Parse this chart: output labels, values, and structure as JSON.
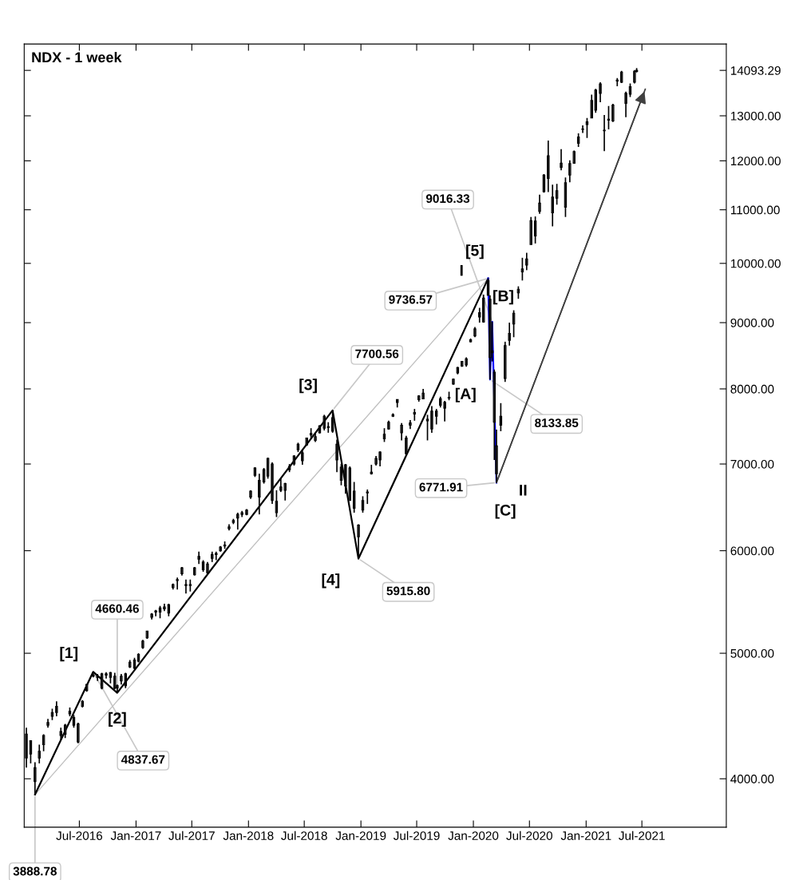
{
  "chart_data": {
    "type": "candlestick",
    "title": "NDX - 1 week",
    "x": [
      "2016-01-11",
      "2016-01-25",
      "2016-02-08",
      "2016-02-22",
      "2016-03-07",
      "2016-03-21",
      "2016-04-04",
      "2016-04-18",
      "2016-05-02",
      "2016-05-16",
      "2016-05-31",
      "2016-06-13",
      "2016-06-27",
      "2016-07-11",
      "2016-07-25",
      "2016-08-15",
      "2016-08-29",
      "2016-09-12",
      "2016-09-26",
      "2016-10-10",
      "2016-10-24",
      "2016-11-01",
      "2016-11-14",
      "2016-11-28",
      "2016-12-12",
      "2016-12-27",
      "2017-01-09",
      "2017-01-23",
      "2017-02-06",
      "2017-02-21",
      "2017-03-06",
      "2017-03-20",
      "2017-04-03",
      "2017-04-17",
      "2017-05-01",
      "2017-05-15",
      "2017-05-30",
      "2017-06-12",
      "2017-06-26",
      "2017-07-10",
      "2017-07-24",
      "2017-08-07",
      "2017-08-21",
      "2017-09-05",
      "2017-09-18",
      "2017-10-02",
      "2017-10-16",
      "2017-10-30",
      "2017-11-13",
      "2017-11-27",
      "2017-12-11",
      "2017-12-26",
      "2018-01-08",
      "2018-01-22",
      "2018-02-05",
      "2018-02-20",
      "2018-03-05",
      "2018-03-19",
      "2018-04-02",
      "2018-04-16",
      "2018-04-30",
      "2018-05-14",
      "2018-05-29",
      "2018-06-11",
      "2018-06-25",
      "2018-07-09",
      "2018-07-23",
      "2018-08-06",
      "2018-08-20",
      "2018-09-04",
      "2018-09-17",
      "2018-10-01",
      "2018-10-15",
      "2018-10-29",
      "2018-11-12",
      "2018-11-26",
      "2018-12-10",
      "2018-12-24",
      "2019-01-07",
      "2019-01-22",
      "2019-02-04",
      "2019-02-19",
      "2019-03-04",
      "2019-03-18",
      "2019-04-01",
      "2019-04-15",
      "2019-04-29",
      "2019-05-13",
      "2019-05-28",
      "2019-06-10",
      "2019-06-24",
      "2019-07-08",
      "2019-07-22",
      "2019-08-05",
      "2019-08-19",
      "2019-09-03",
      "2019-09-16",
      "2019-09-30",
      "2019-10-14",
      "2019-10-28",
      "2019-11-11",
      "2019-11-25",
      "2019-12-09",
      "2019-12-23",
      "2020-01-06",
      "2020-01-21",
      "2020-02-03",
      "2020-02-18",
      "2020-02-24",
      "2020-03-02",
      "2020-03-09",
      "2020-03-16",
      "2020-03-30",
      "2020-04-13",
      "2020-04-27",
      "2020-05-11",
      "2020-05-26",
      "2020-06-08",
      "2020-06-22",
      "2020-07-06",
      "2020-07-20",
      "2020-08-03",
      "2020-08-17",
      "2020-08-31",
      "2020-09-14",
      "2020-09-28",
      "2020-10-12",
      "2020-10-26",
      "2020-11-09",
      "2020-11-23",
      "2020-12-07",
      "2020-12-21",
      "2021-01-04",
      "2021-01-19",
      "2021-02-01",
      "2021-02-16",
      "2021-03-01",
      "2021-03-15",
      "2021-03-29",
      "2021-04-12",
      "2021-04-26",
      "2021-05-10",
      "2021-05-24",
      "2021-06-07",
      "2021-06-14"
    ],
    "ohlc": [
      [
        4330,
        4380,
        4080,
        4150
      ],
      [
        4180,
        4280,
        4110,
        4280
      ],
      [
        4080,
        4120,
        3888.78,
        3980
      ],
      [
        4150,
        4250,
        4110,
        4200
      ],
      [
        4250,
        4330,
        4200,
        4320
      ],
      [
        4400,
        4450,
        4380,
        4420
      ],
      [
        4500,
        4530,
        4440,
        4470
      ],
      [
        4550,
        4590,
        4470,
        4500
      ],
      [
        4350,
        4380,
        4290,
        4320
      ],
      [
        4330,
        4410,
        4300,
        4400
      ],
      [
        4510,
        4540,
        4470,
        4490
      ],
      [
        4460,
        4480,
        4380,
        4400
      ],
      [
        4270,
        4420,
        4260,
        4410
      ],
      [
        4550,
        4600,
        4540,
        4590
      ],
      [
        4680,
        4730,
        4670,
        4730
      ],
      [
        4800,
        4837.67,
        4790,
        4810
      ],
      [
        4800,
        4820,
        4760,
        4790
      ],
      [
        4700,
        4830,
        4690,
        4820
      ],
      [
        4820,
        4835,
        4780,
        4810
      ],
      [
        4830,
        4836,
        4740,
        4790
      ],
      [
        4800,
        4830,
        4690,
        4700
      ],
      [
        4720,
        4730,
        4660.46,
        4700
      ],
      [
        4760,
        4820,
        4730,
        4800
      ],
      [
        4820,
        4830,
        4700,
        4720
      ],
      [
        4880,
        4940,
        4870,
        4920
      ],
      [
        4940,
        4960,
        4860,
        4870
      ],
      [
        4930,
        5000,
        4920,
        4990
      ],
      [
        5050,
        5120,
        5040,
        5110
      ],
      [
        5140,
        5200,
        5130,
        5200
      ],
      [
        5330,
        5370,
        5310,
        5360
      ],
      [
        5380,
        5400,
        5340,
        5390
      ],
      [
        5420,
        5440,
        5320,
        5380
      ],
      [
        5430,
        5460,
        5390,
        5410
      ],
      [
        5370,
        5460,
        5340,
        5450
      ],
      [
        5620,
        5660,
        5600,
        5650
      ],
      [
        5690,
        5720,
        5600,
        5700
      ],
      [
        5760,
        5830,
        5740,
        5820
      ],
      [
        5650,
        5700,
        5560,
        5640
      ],
      [
        5650,
        5700,
        5580,
        5640
      ],
      [
        5750,
        5830,
        5740,
        5820
      ],
      [
        5940,
        5990,
        5860,
        5910
      ],
      [
        5880,
        5900,
        5780,
        5800
      ],
      [
        5770,
        5880,
        5750,
        5860
      ],
      [
        5960,
        5990,
        5880,
        5920
      ],
      [
        5970,
        5990,
        5900,
        5960
      ],
      [
        6000,
        6050,
        5990,
        6040
      ],
      [
        6050,
        6100,
        6020,
        6060
      ],
      [
        6240,
        6290,
        6220,
        6260
      ],
      [
        6310,
        6350,
        6290,
        6330
      ],
      [
        6400,
        6420,
        6230,
        6360
      ],
      [
        6400,
        6440,
        6370,
        6420
      ],
      [
        6450,
        6460,
        6390,
        6400
      ],
      [
        6600,
        6680,
        6580,
        6670
      ],
      [
        6860,
        6960,
        6840,
        6950
      ],
      [
        6800,
        6880,
        6400,
        6600
      ],
      [
        6780,
        6950,
        6760,
        6930
      ],
      [
        6850,
        7080,
        6820,
        7070
      ],
      [
        7000,
        7020,
        6520,
        6560
      ],
      [
        6420,
        6680,
        6370,
        6550
      ],
      [
        6720,
        6830,
        6660,
        6680
      ],
      [
        6680,
        6770,
        6560,
        6760
      ],
      [
        6970,
        7000,
        6900,
        6930
      ],
      [
        7000,
        7110,
        6980,
        7100
      ],
      [
        7180,
        7270,
        7150,
        7250
      ],
      [
        7140,
        7180,
        6990,
        7040
      ],
      [
        7240,
        7330,
        7230,
        7330
      ],
      [
        7390,
        7460,
        7330,
        7370
      ],
      [
        7300,
        7390,
        7280,
        7350
      ],
      [
        7400,
        7500,
        7390,
        7490
      ],
      [
        7620,
        7640,
        7430,
        7460
      ],
      [
        7480,
        7540,
        7400,
        7470
      ],
      [
        7600,
        7700.56,
        7400,
        7420
      ],
      [
        7250,
        7310,
        6900,
        7050
      ],
      [
        6800,
        7000,
        6740,
        6960
      ],
      [
        6990,
        7000,
        6640,
        6730
      ],
      [
        6560,
        6970,
        6560,
        6950
      ],
      [
        6670,
        6780,
        6420,
        6470
      ],
      [
        6150,
        6290,
        5915.8,
        6280
      ],
      [
        6450,
        6610,
        6420,
        6560
      ],
      [
        6660,
        6690,
        6520,
        6650
      ],
      [
        6900,
        6990,
        6870,
        6880
      ],
      [
        7000,
        7100,
        6980,
        7070
      ],
      [
        7150,
        7160,
        6970,
        7050
      ],
      [
        7380,
        7460,
        7280,
        7320
      ],
      [
        7450,
        7560,
        7440,
        7540
      ],
      [
        7620,
        7660,
        7610,
        7640
      ],
      [
        7850,
        7850,
        7740,
        7810
      ],
      [
        7400,
        7530,
        7300,
        7500
      ],
      [
        7330,
        7360,
        7100,
        7130
      ],
      [
        7500,
        7570,
        7450,
        7530
      ],
      [
        7650,
        7720,
        7560,
        7670
      ],
      [
        7850,
        7910,
        7820,
        7900
      ],
      [
        7860,
        8000,
        7860,
        7940
      ],
      [
        7560,
        7640,
        7300,
        7580
      ],
      [
        7690,
        7760,
        7400,
        7450
      ],
      [
        7620,
        7720,
        7510,
        7690
      ],
      [
        7860,
        7890,
        7740,
        7770
      ],
      [
        7810,
        7830,
        7550,
        7730
      ],
      [
        7880,
        7960,
        7840,
        7870
      ],
      [
        8070,
        8150,
        8060,
        8140
      ],
      [
        8230,
        8320,
        8210,
        8310
      ],
      [
        8330,
        8400,
        8320,
        8400
      ],
      [
        8350,
        8460,
        8320,
        8440
      ],
      [
        8700,
        8750,
        8690,
        8730
      ],
      [
        8790,
        8930,
        8770,
        8900
      ],
      [
        9160,
        9240,
        9000,
        9090
      ],
      [
        9010,
        9460,
        9000,
        9400
      ],
      [
        9700,
        9736.57,
        9440,
        9450
      ],
      [
        9380,
        9450,
        8133.85,
        8460
      ],
      [
        8560,
        9016.33,
        8400,
        8530
      ],
      [
        8240,
        8280,
        7050,
        7540
      ],
      [
        7230,
        7440,
        6771.91,
        6880
      ],
      [
        7620,
        7800,
        7420,
        7500
      ],
      [
        8150,
        8700,
        8100,
        8640
      ],
      [
        8830,
        9000,
        8640,
        8720
      ],
      [
        8980,
        9200,
        8770,
        9150
      ],
      [
        9490,
        9600,
        9390,
        9550
      ],
      [
        9900,
        10100,
        9700,
        9850
      ],
      [
        10080,
        10190,
        9880,
        9970
      ],
      [
        10340,
        10860,
        10340,
        10790
      ],
      [
        10780,
        10870,
        10360,
        10500
      ],
      [
        10970,
        11300,
        10920,
        11130
      ],
      [
        11360,
        11720,
        11340,
        11700
      ],
      [
        12110,
        12439,
        11350,
        11630
      ],
      [
        11250,
        11500,
        10680,
        10940
      ],
      [
        11230,
        11520,
        11100,
        11380
      ],
      [
        11950,
        12250,
        11800,
        11860
      ],
      [
        11540,
        11650,
        10860,
        11050
      ],
      [
        11700,
        12010,
        11550,
        11940
      ],
      [
        11950,
        12220,
        11940,
        12200
      ],
      [
        12520,
        12600,
        12300,
        12380
      ],
      [
        12690,
        12780,
        12610,
        12700
      ],
      [
        12800,
        12950,
        12500,
        12860
      ],
      [
        12950,
        13500,
        12950,
        13360
      ],
      [
        13130,
        13640,
        13070,
        13610
      ],
      [
        13760,
        13800,
        13320,
        13530
      ],
      [
        12660,
        13020,
        12210,
        12670
      ],
      [
        12920,
        13230,
        12690,
        12900
      ],
      [
        12880,
        13280,
        12860,
        13250
      ],
      [
        13830,
        13900,
        13700,
        13850
      ],
      [
        14050,
        14080,
        13780,
        13800
      ],
      [
        13530,
        13570,
        12970,
        13290
      ],
      [
        13510,
        13770,
        13440,
        13690
      ],
      [
        13800,
        14100,
        13770,
        14069
      ],
      [
        14069,
        14150,
        14040,
        14093.29
      ]
    ],
    "colors": [
      "#a0a0a0",
      "#ffffff",
      "#a0a0a0",
      "#ffffff",
      "#ffffff",
      "#ffffff",
      "#a0a0a0",
      "#a0a0a0",
      "#a0a0a0",
      "#ffffff",
      "#a0a0a0",
      "#a0a0a0",
      "#ffffff",
      "#ffffff",
      "#ffffff",
      "#ffffff",
      "#a0a0a0",
      "#ffffff",
      "#a0a0a0",
      "#a0a0a0",
      "#a0a0a0",
      "#a0a0a0",
      "#ffffff",
      "#a0a0a0",
      "#ffffff",
      "#a0a0a0",
      "#ffffff",
      "#ffffff",
      "#ffffff",
      "#ffffff",
      "#ffffff",
      "#a0a0a0",
      "#a0a0a0",
      "#ffffff",
      "#ffffff",
      "#ffffff",
      "#ffffff",
      "#a0a0a0",
      "#a0a0a0",
      "#ffffff",
      "#a0a0a0",
      "#a0a0a0",
      "#ffffff",
      "#a0a0a0",
      "#a0a0a0",
      "#ffffff",
      "#ffffff",
      "#ffffff",
      "#ffffff",
      "#a0a0a0",
      "#ffffff",
      "#a0a0a0",
      "#ffffff",
      "#ffffff",
      "#a0a0a0",
      "#ffffff",
      "#ffffff",
      "#a0a0a0",
      "#ffffff",
      "#a0a0a0",
      "#ffffff",
      "#a0a0a0",
      "#ffffff",
      "#ffffff",
      "#a0a0a0",
      "#ffffff",
      "#a0a0a0",
      "#ffffff",
      "#ffffff",
      "#a0a0a0",
      "#a0a0a0",
      "#a0a0a0",
      "#a0a0a0",
      "#ffffff",
      "#a0a0a0",
      "#ffffff",
      "#a0a0a0",
      "#ffffff",
      "#ffffff",
      "#a0a0a0",
      "#a0a0a0",
      "#ffffff",
      "#a0a0a0",
      "#a0a0a0",
      "#ffffff",
      "#ffffff",
      "#a0a0a0",
      "#ffffff",
      "#a0a0a0",
      "#ffffff",
      "#ffffff",
      "#ffffff",
      "#ffffff",
      "#ffffff",
      "#a0a0a0",
      "#ffffff",
      "#a0a0a0",
      "#a0a0a0",
      "#a0a0a0",
      "#ffffff",
      "#ffffff",
      "#ffffff",
      "#ffffff",
      "#ffffff",
      "#ffffff",
      "#a0a0a0",
      "#ffffff",
      "#a0a0a0",
      "#a0a0a0",
      "#a0a0a0",
      "#a0a0a0",
      "#a0a0a0",
      "#a0a0a0",
      "#ffffff",
      "#a0a0a0",
      "#ffffff",
      "#ffffff",
      "#a0a0a0",
      "#a0a0a0",
      "#ffffff",
      "#a0a0a0",
      "#ffffff",
      "#ffffff",
      "#a0a0a0",
      "#a0a0a0",
      "#ffffff",
      "#a0a0a0",
      "#a0a0a0",
      "#ffffff",
      "#ffffff",
      "#a0a0a0",
      "#ffffff",
      "#ffffff",
      "#ffffff",
      "#ffffff",
      "#a0a0a0",
      "#ffffff",
      "#a0a0a0",
      "#ffffff",
      "#ffffff",
      "#a0a0a0",
      "#a0a0a0",
      "#ffffff",
      "#ffffff",
      "#ffffff"
    ],
    "color": "#000000",
    "series": [
      {
        "type": "line",
        "color": "#c0c0c0",
        "x": [
          "2016-02-08",
          "2020-02-18"
        ],
        "values": [
          3888.78,
          9736.57
        ]
      },
      {
        "type": "line",
        "color": "#000000",
        "x": [
          "2016-02-08",
          "2016-08-15",
          "2016-11-01",
          "2018-10-01",
          "2018-12-24",
          "2020-02-18"
        ],
        "values": [
          3888.78,
          4837.67,
          4660.46,
          7700.56,
          5915.8,
          9736.57
        ]
      },
      {
        "type": "line",
        "color": "#0000ff",
        "x": [
          "2020-02-18",
          "2020-02-24",
          "2020-03-02",
          "2020-03-16"
        ],
        "values": [
          9736.57,
          8133.85,
          9016.33,
          6771.91
        ]
      },
      {
        "type": "line",
        "color": "#404040",
        "x": [
          "2020-03-16",
          "2021-07-12"
        ],
        "values": [
          6771.91,
          13630
        ]
      }
    ],
    "annotations": [
      {
        "text": "3888.78",
        "x": "2016-02-08",
        "y": 3888.78
      },
      {
        "text": "4837.67",
        "x": "2016-08-15",
        "y": 4837.67
      },
      {
        "text": "[1]",
        "x": "2016-08-15",
        "y": 4837.67
      },
      {
        "text": "4660.46",
        "x": "2016-11-01",
        "y": 4660.46
      },
      {
        "text": "[2]",
        "x": "2016-11-01",
        "y": 4660.46
      },
      {
        "text": "7700.56",
        "x": "2018-10-01",
        "y": 7700.56
      },
      {
        "text": "[3]",
        "x": "2018-10-01",
        "y": 7700.56
      },
      {
        "text": "5915.80",
        "x": "2018-12-24",
        "y": 5915.8
      },
      {
        "text": "[4]",
        "x": "2018-12-24",
        "y": 5915.8
      },
      {
        "text": "9736.57",
        "x": "2020-02-18",
        "y": 9736.57
      },
      {
        "text": "[5]",
        "x": "2020-02-18",
        "y": 9736.57
      },
      {
        "text": "I",
        "x": "2020-02-18",
        "y": 9736.57
      },
      {
        "text": "8133.85",
        "x": "2020-02-24",
        "y": 8133.85
      },
      {
        "text": "[A]",
        "x": "2020-02-24",
        "y": 8133.85
      },
      {
        "text": "9016.33",
        "x": "2020-03-02",
        "y": 9016.33
      },
      {
        "text": "[B]",
        "x": "2020-03-02",
        "y": 9016.33
      },
      {
        "text": "6771.91",
        "x": "2020-03-16",
        "y": 6771.91
      },
      {
        "text": "[C]",
        "x": "2020-03-16",
        "y": 6771.91
      },
      {
        "text": "II",
        "x": "2020-03-16",
        "y": 6771.91
      }
    ],
    "log": "y",
    "xlim": [
      "2016-01-04",
      "2022-04-01"
    ],
    "xticks": [
      {
        "value": "2016-07-01",
        "label": "Jul-2016"
      },
      {
        "value": "2017-01-01",
        "label": "Jan-2017"
      },
      {
        "value": "2017-07-01",
        "label": "Jul-2017"
      },
      {
        "value": "2018-01-01",
        "label": "Jan-2018"
      },
      {
        "value": "2018-07-01",
        "label": "Jul-2018"
      },
      {
        "value": "2019-01-01",
        "label": "Jan-2019"
      },
      {
        "value": "2019-07-01",
        "label": "Jul-2019"
      },
      {
        "value": "2020-01-01",
        "label": "Jan-2020"
      },
      {
        "value": "2020-07-01",
        "label": "Jul-2020"
      },
      {
        "value": "2021-01-01",
        "label": "Jan-2021"
      },
      {
        "value": "2021-07-01",
        "label": "Jul-2021"
      }
    ],
    "ylim": [
      3670,
      14770
    ],
    "yticks": [
      {
        "value": 4000,
        "label": "4000.00"
      },
      {
        "value": 5000,
        "label": "5000.00"
      },
      {
        "value": 6000,
        "label": "6000.00"
      },
      {
        "value": 7000,
        "label": "7000.00"
      },
      {
        "value": 8000,
        "label": "8000.00"
      },
      {
        "value": 9000,
        "label": "9000.00"
      },
      {
        "value": 10000,
        "label": "10000.00"
      },
      {
        "value": 11000,
        "label": "11000.00"
      },
      {
        "value": 12000,
        "label": "12000.00"
      },
      {
        "value": 13000,
        "label": "13000.00"
      },
      {
        "value": 14093.29,
        "label": "14093.29"
      }
    ],
    "grid": false,
    "legend": false
  }
}
